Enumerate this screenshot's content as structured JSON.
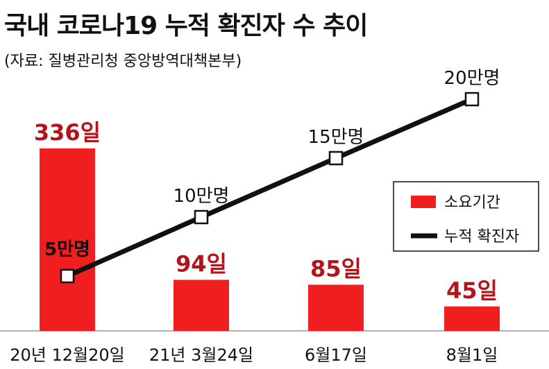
{
  "title": "국내 코로나19 누적 확진자 수 추이",
  "source": "(자료: 질병관리청 중앙방역대책본부)",
  "colors": {
    "bar": "#f01e1e",
    "bar_label": "#b5121b",
    "line": "#111111",
    "white_label": "#ffffff"
  },
  "chart_data": {
    "type": "bar+line",
    "categories": [
      "20년 12월20일",
      "21년 3월24일",
      "6월17일",
      "8월1일"
    ],
    "series": [
      {
        "name": "소요기간",
        "type": "bar",
        "values": [
          336,
          94,
          85,
          45
        ],
        "labels": [
          "336일",
          "94일",
          "85일",
          "45일"
        ]
      },
      {
        "name": "누적 확진자",
        "type": "line",
        "values": [
          5,
          10,
          15,
          20
        ],
        "labels": [
          "5만명",
          "10만명",
          "15만명",
          "20만명"
        ]
      }
    ],
    "legend": {
      "position": "right",
      "items": [
        "소요기간",
        "누적 확진자"
      ]
    }
  }
}
